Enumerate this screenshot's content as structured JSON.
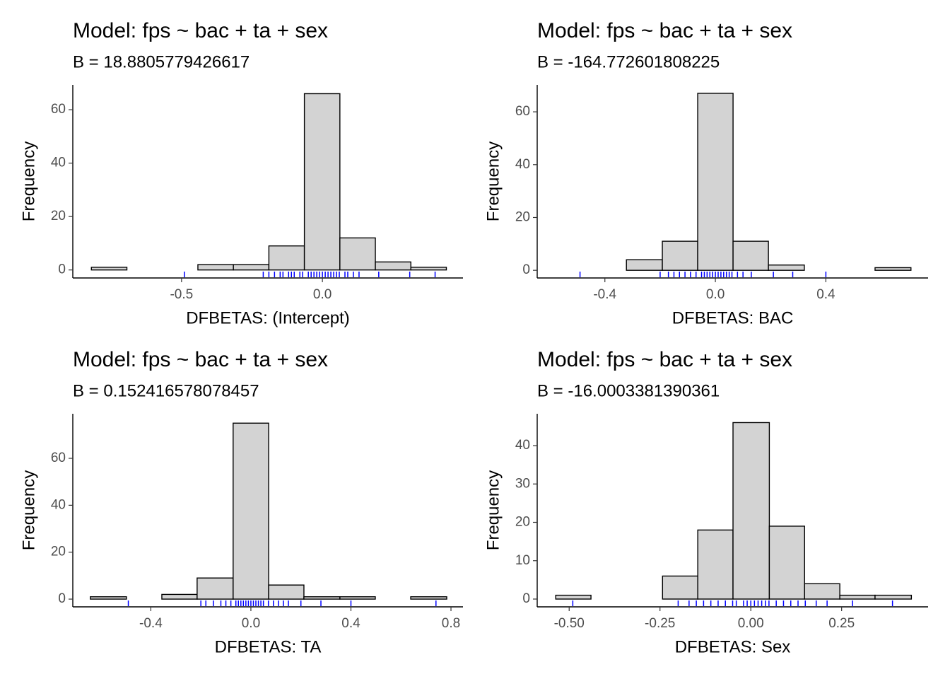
{
  "chart_data": [
    {
      "type": "histogram",
      "title": "Model: fps ~ bac + ta + sex",
      "subtitle": "B = 18.8805779426617",
      "xlabel": "DFBETAS: (Intercept)",
      "ylabel": "Frequency",
      "bins": [
        -0.82,
        -0.694,
        -0.568,
        -0.442,
        -0.316,
        -0.19,
        -0.064,
        0.062,
        0.188,
        0.314,
        0.44
      ],
      "counts": [
        1,
        0,
        0,
        2,
        2,
        9,
        66,
        12,
        3,
        1
      ],
      "rug": [
        -0.49,
        -0.21,
        -0.19,
        -0.17,
        -0.15,
        -0.14,
        -0.12,
        -0.11,
        -0.1,
        -0.08,
        -0.07,
        -0.05,
        -0.04,
        -0.03,
        -0.02,
        -0.01,
        0,
        0.01,
        0.02,
        0.03,
        0.04,
        0.05,
        0.06,
        0.08,
        0.09,
        0.11,
        0.13,
        0.2,
        0.31,
        0.4
      ],
      "xlim": [
        -0.886,
        0.499
      ],
      "ylim": [
        -3,
        69.3
      ],
      "xticks": [
        -0.5,
        {
          "value": 0,
          "label": "0.0"
        }
      ],
      "yticks": [
        0,
        20,
        40,
        60
      ],
      "color": "#d3d3d3",
      "edge_color": "#000000",
      "rug_color": "#0000ff"
    },
    {
      "type": "histogram",
      "title": "Model: fps ~ bac + ta + sex",
      "subtitle": "B = -164.772601808225",
      "xlabel": "DFBETAS: BAC",
      "ylabel": "Frequency",
      "bins": [
        -0.578,
        -0.45,
        -0.322,
        -0.192,
        -0.064,
        0.064,
        0.192,
        0.322,
        0.45,
        0.578,
        0.708
      ],
      "counts": [
        0,
        0,
        4,
        11,
        67,
        11,
        2,
        0,
        0,
        1
      ],
      "rug": [
        -0.49,
        -0.2,
        -0.17,
        -0.15,
        -0.13,
        -0.11,
        -0.09,
        -0.07,
        -0.05,
        -0.04,
        -0.03,
        -0.02,
        -0.01,
        0,
        0.01,
        0.02,
        0.03,
        0.04,
        0.05,
        0.06,
        0.08,
        0.1,
        0.13,
        0.21,
        0.28,
        0.4
      ],
      "xlim": [
        -0.645,
        0.77
      ],
      "ylim": [
        -2.9,
        70.2
      ],
      "xticks": [
        -0.4,
        {
          "value": 0,
          "label": "0.0"
        },
        0.4
      ],
      "yticks": [
        0,
        20,
        40,
        60
      ],
      "color": "#d3d3d3",
      "edge_color": "#000000",
      "rug_color": "#0000ff"
    },
    {
      "type": "histogram",
      "title": "Model: fps ~ bac + ta + sex",
      "subtitle": "B = 0.152416578078457",
      "xlabel": "DFBETAS: TA",
      "ylabel": "Frequency",
      "bins": [
        -0.642,
        -0.4975,
        -0.356,
        -0.215,
        -0.071,
        0.071,
        0.212,
        0.356,
        0.4975,
        0.639,
        0.783
      ],
      "counts": [
        1,
        0,
        2,
        9,
        75,
        6,
        1,
        1,
        0,
        1
      ],
      "rug": [
        -0.49,
        -0.2,
        -0.18,
        -0.15,
        -0.12,
        -0.1,
        -0.08,
        -0.06,
        -0.05,
        -0.04,
        -0.03,
        -0.02,
        -0.01,
        0,
        0.01,
        0.02,
        0.03,
        0.04,
        0.05,
        0.07,
        0.09,
        0.11,
        0.13,
        0.15,
        0.2,
        0.28,
        0.4,
        0.74
      ],
      "xlim": [
        -0.712,
        0.848
      ],
      "ylim": [
        -3.3,
        79
      ],
      "xticks": [
        -0.4,
        {
          "value": 0,
          "label": "0.0"
        },
        0.4,
        0.8
      ],
      "yticks": [
        0,
        20,
        40,
        60
      ],
      "color": "#d3d3d3",
      "edge_color": "#000000",
      "rug_color": "#0000ff"
    },
    {
      "type": "histogram",
      "title": "Model: fps ~ bac + ta + sex",
      "subtitle": "B = -16.0003381390361",
      "xlabel": "DFBETAS: Sex",
      "ylabel": "Frequency",
      "bins": [
        -0.537,
        -0.44,
        -0.342,
        -0.243,
        -0.146,
        -0.049,
        0.051,
        0.148,
        0.245,
        0.342,
        0.442
      ],
      "counts": [
        1,
        0,
        0,
        6,
        18,
        46,
        19,
        4,
        1,
        1
      ],
      "rug": [
        -0.49,
        -0.2,
        -0.17,
        -0.15,
        -0.13,
        -0.11,
        -0.09,
        -0.07,
        -0.05,
        -0.04,
        -0.02,
        -0.01,
        0,
        0.01,
        0.02,
        0.03,
        0.04,
        0.05,
        0.07,
        0.09,
        0.11,
        0.13,
        0.15,
        0.18,
        0.21,
        0.28,
        0.39
      ],
      "xlim": [
        -0.588,
        0.488
      ],
      "ylim": [
        -2.03,
        48.3
      ],
      "xticks": [
        {
          "value": -0.5,
          "label": "-0.50"
        },
        -0.25,
        {
          "value": 0,
          "label": "0.00"
        },
        0.25
      ],
      "yticks": [
        0,
        10,
        20,
        30,
        40
      ],
      "color": "#d3d3d3",
      "edge_color": "#000000",
      "rug_color": "#0000ff"
    }
  ]
}
